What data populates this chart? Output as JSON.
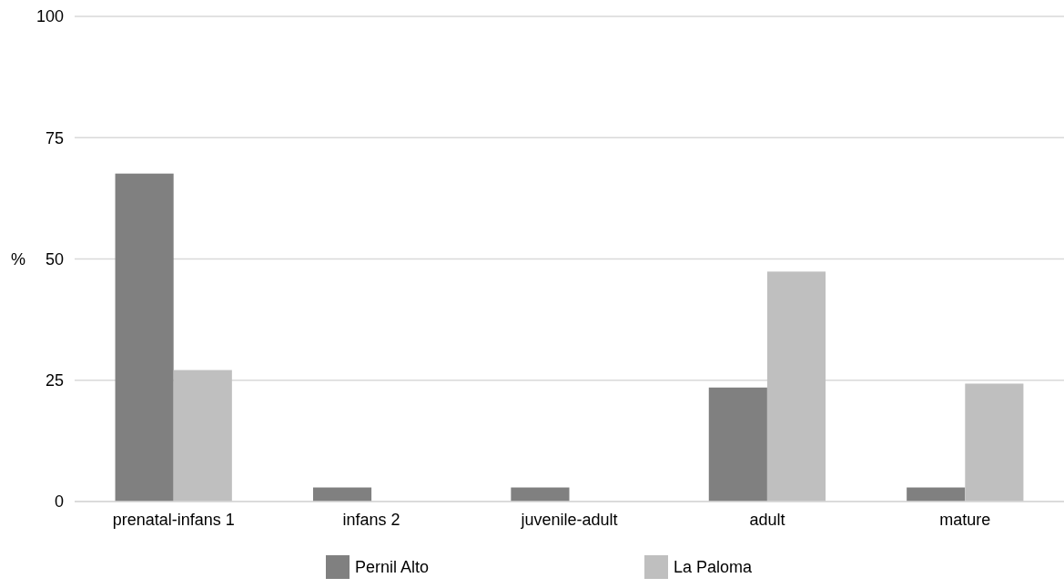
{
  "chart_data": {
    "type": "bar",
    "ylabel": "%",
    "categories": [
      "prenatal-infans 1",
      "infans 2",
      "juvenile-adult",
      "adult",
      "mature"
    ],
    "series": [
      {
        "name": "Pernil Alto",
        "color": "#808080",
        "values": [
          67.6,
          2.9,
          2.9,
          23.5,
          2.9
        ]
      },
      {
        "name": "La Paloma",
        "color": "#bfbfbf",
        "values": [
          27.1,
          null,
          null,
          47.4,
          24.3
        ]
      }
    ],
    "ylim": [
      0,
      100
    ],
    "yticks": [
      0,
      25,
      50,
      75,
      100
    ],
    "grid": "y",
    "legend": "bottom"
  }
}
